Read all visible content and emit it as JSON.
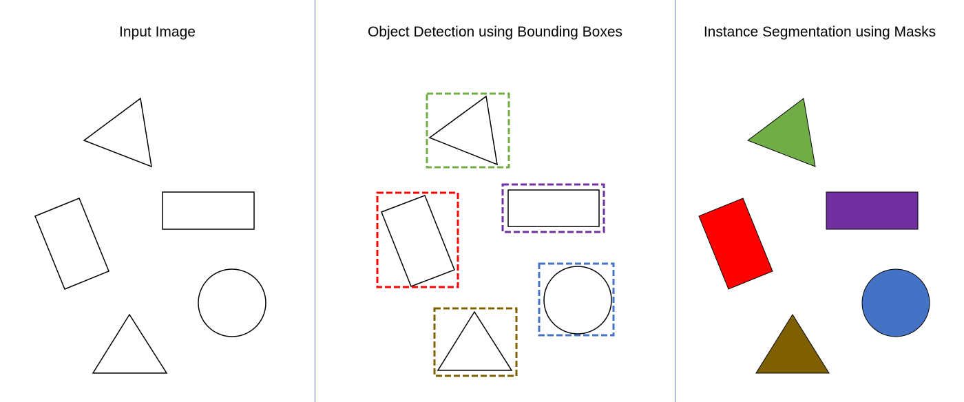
{
  "panels": [
    {
      "title": "Input Image"
    },
    {
      "title": "Object Detection using Bounding Boxes"
    },
    {
      "title": "Instance Segmentation using Masks"
    }
  ],
  "colors": {
    "divider": "#5b84c4",
    "triangle_top": "#70ad47",
    "rectangle_tilted": "#ff0000",
    "rectangle_wide": "#7030a0",
    "circle": "#4472c4",
    "triangle_bottom": "#7f6000"
  }
}
